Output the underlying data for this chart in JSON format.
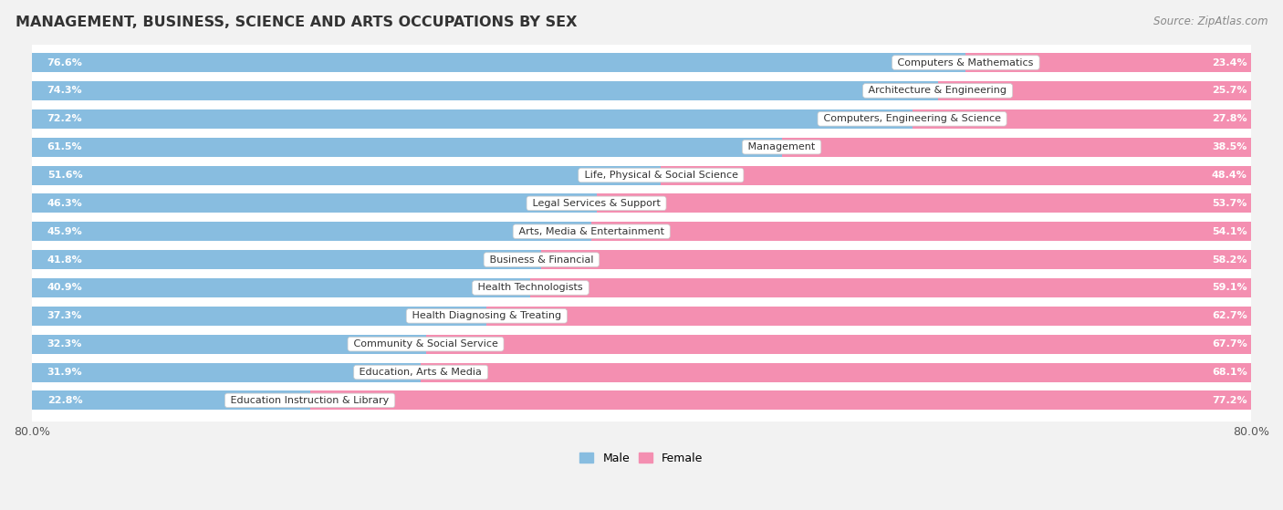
{
  "title": "MANAGEMENT, BUSINESS, SCIENCE AND ARTS OCCUPATIONS BY SEX",
  "source": "Source: ZipAtlas.com",
  "categories": [
    "Computers & Mathematics",
    "Architecture & Engineering",
    "Computers, Engineering & Science",
    "Management",
    "Life, Physical & Social Science",
    "Legal Services & Support",
    "Arts, Media & Entertainment",
    "Business & Financial",
    "Health Technologists",
    "Health Diagnosing & Treating",
    "Community & Social Service",
    "Education, Arts & Media",
    "Education Instruction & Library"
  ],
  "male_pct": [
    76.6,
    74.3,
    72.2,
    61.5,
    51.6,
    46.3,
    45.9,
    41.8,
    40.9,
    37.3,
    32.3,
    31.9,
    22.8
  ],
  "female_pct": [
    23.4,
    25.7,
    27.8,
    38.5,
    48.4,
    53.7,
    54.1,
    58.2,
    59.1,
    62.7,
    67.7,
    68.1,
    77.2
  ],
  "male_color": "#88bde0",
  "female_color": "#f48fb1",
  "background_color": "#f2f2f2",
  "bar_background": "#ffffff",
  "row_bg_color": "#e8e8e8",
  "axis_max": 80.0,
  "title_fontsize": 11.5,
  "source_fontsize": 8.5,
  "label_fontsize": 8,
  "pct_fontsize": 8,
  "legend_fontsize": 9
}
